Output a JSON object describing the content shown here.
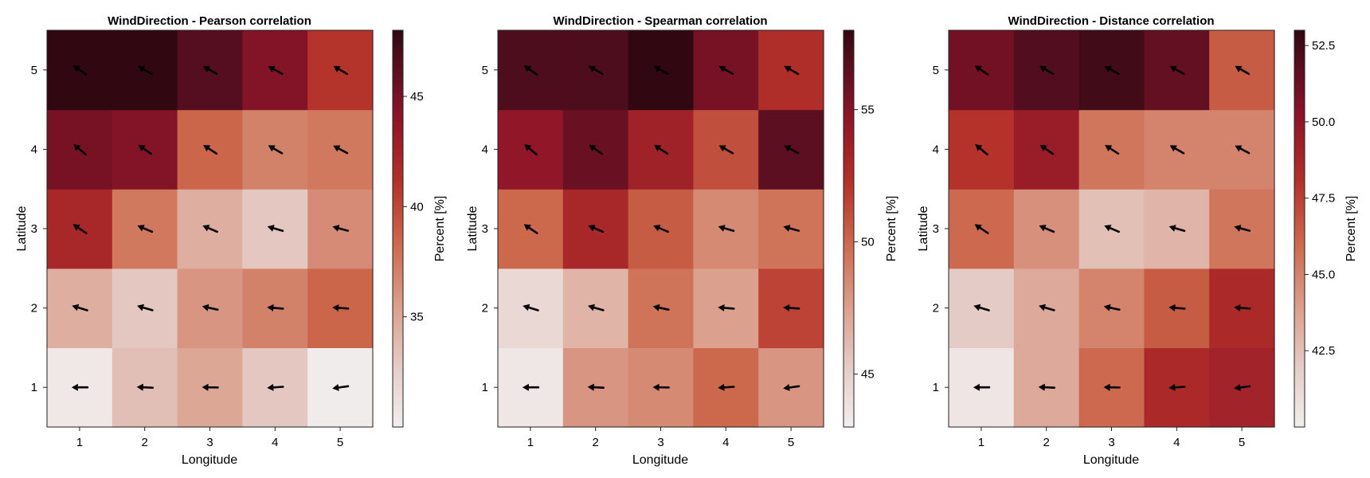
{
  "chart_data": [
    {
      "type": "heatmap",
      "title": "WindDirection - Pearson correlation",
      "xlabel": "Longitude",
      "ylabel": "Latitude",
      "x_ticks": [
        "1",
        "2",
        "3",
        "4",
        "5"
      ],
      "y_ticks": [
        "1",
        "2",
        "3",
        "4",
        "5"
      ],
      "colorbar_label": "Percent [%]",
      "colorbar_ticks": [
        "35",
        "40",
        "45"
      ],
      "colorbar_tick_values": [
        35,
        40,
        45
      ],
      "clim": [
        30.0,
        48.0
      ],
      "values_by_latitude_row": [
        [
          30.5,
          33.5,
          35.0,
          33.0,
          30.2
        ],
        [
          34.5,
          33.0,
          36.0,
          37.0,
          38.5
        ],
        [
          42.0,
          37.5,
          34.5,
          33.0,
          36.5
        ],
        [
          45.0,
          44.5,
          38.5,
          37.0,
          37.5
        ],
        [
          48.0,
          48.0,
          46.5,
          44.5,
          41.0
        ]
      ],
      "wind_angle_deg_by_latitude_row": [
        [
          180,
          177,
          179,
          184,
          188
        ],
        [
          163,
          164,
          168,
          175,
          176
        ],
        [
          146,
          157,
          157,
          164,
          165
        ],
        [
          140,
          145,
          147,
          150,
          152
        ],
        [
          145,
          150,
          151,
          151,
          150
        ]
      ]
    },
    {
      "type": "heatmap",
      "title": "WindDirection - Spearman correlation",
      "xlabel": "Longitude",
      "ylabel": "Latitude",
      "x_ticks": [
        "1",
        "2",
        "3",
        "4",
        "5"
      ],
      "y_ticks": [
        "1",
        "2",
        "3",
        "4",
        "5"
      ],
      "colorbar_label": "Percent [%]",
      "colorbar_ticks": [
        "45",
        "50",
        "55"
      ],
      "colorbar_tick_values": [
        45,
        50,
        55
      ],
      "clim": [
        43.0,
        58.0
      ],
      "values_by_latitude_row": [
        [
          43.5,
          48.0,
          48.5,
          50.0,
          48.0
        ],
        [
          44.5,
          46.5,
          49.5,
          47.5,
          51.5
        ],
        [
          50.0,
          53.0,
          50.5,
          48.5,
          49.5
        ],
        [
          54.5,
          56.0,
          53.5,
          51.0,
          56.5
        ],
        [
          57.0,
          57.0,
          58.0,
          55.5,
          52.5
        ]
      ],
      "wind_angle_deg_by_latitude_row": [
        [
          180,
          177,
          179,
          184,
          188
        ],
        [
          163,
          164,
          168,
          175,
          176
        ],
        [
          146,
          157,
          157,
          164,
          165
        ],
        [
          140,
          145,
          147,
          150,
          152
        ],
        [
          145,
          150,
          151,
          151,
          150
        ]
      ]
    },
    {
      "type": "heatmap",
      "title": "WindDirection - Distance correlation",
      "xlabel": "Longitude",
      "ylabel": "Latitude",
      "x_ticks": [
        "1",
        "2",
        "3",
        "4",
        "5"
      ],
      "y_ticks": [
        "1",
        "2",
        "3",
        "4",
        "5"
      ],
      "colorbar_label": "Percent [%]",
      "colorbar_ticks": [
        "42.5",
        "45.0",
        "47.5",
        "50.0",
        "52.5"
      ],
      "colorbar_tick_values": [
        42.5,
        45.0,
        47.5,
        50.0,
        52.5
      ],
      "clim": [
        40.0,
        53.0
      ],
      "values_by_latitude_row": [
        [
          40.5,
          43.5,
          46.0,
          48.5,
          49.0
        ],
        [
          42.0,
          43.5,
          45.0,
          46.5,
          48.5
        ],
        [
          46.0,
          44.5,
          42.5,
          43.0,
          45.5
        ],
        [
          48.0,
          49.5,
          45.5,
          45.0,
          45.0
        ],
        [
          51.0,
          52.0,
          52.5,
          51.5,
          46.5
        ]
      ],
      "wind_angle_deg_by_latitude_row": [
        [
          180,
          177,
          179,
          184,
          188
        ],
        [
          163,
          164,
          168,
          175,
          176
        ],
        [
          146,
          157,
          157,
          164,
          165
        ],
        [
          140,
          145,
          147,
          150,
          152
        ],
        [
          145,
          150,
          151,
          151,
          150
        ]
      ]
    }
  ]
}
